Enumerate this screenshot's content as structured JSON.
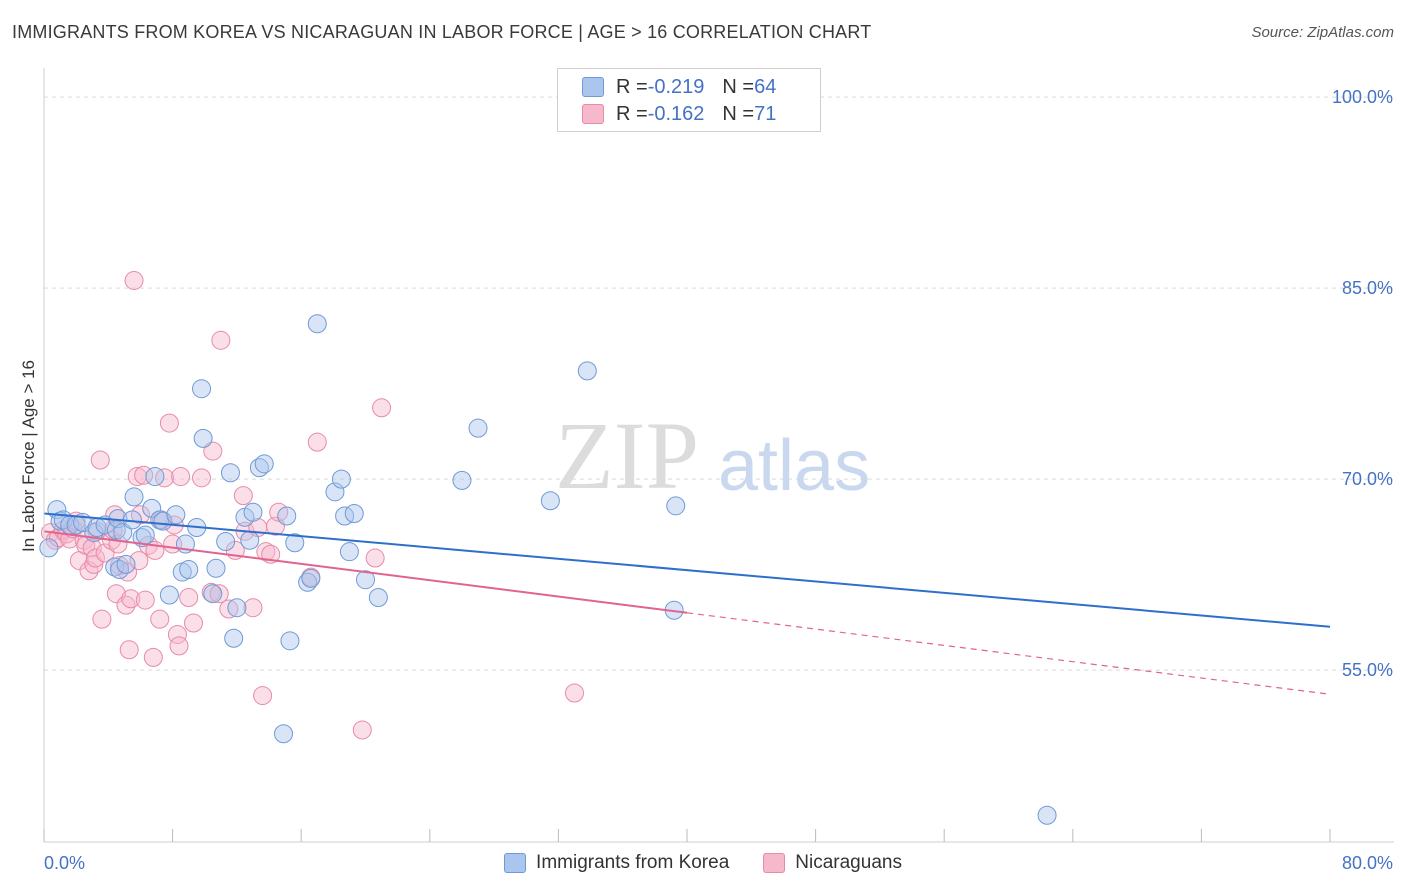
{
  "title": "IMMIGRANTS FROM KOREA VS NICARAGUAN IN LABOR FORCE | AGE > 16 CORRELATION CHART",
  "source": "Source: ZipAtlas.com",
  "watermark": {
    "part1": "ZIP",
    "part2": "atlas"
  },
  "legend": {
    "rows": [
      {
        "r_label": "R = ",
        "r_value": "-0.219",
        "n_label": "N = ",
        "n_value": "64"
      },
      {
        "r_label": "R = ",
        "r_value": "-0.162",
        "n_label": "N = ",
        "n_value": "71"
      }
    ]
  },
  "colors": {
    "korea_fill": "#aac6ee",
    "korea_stroke": "#6f9ad6",
    "korea_line": "#2f6fcc",
    "nica_fill": "#f6b8cb",
    "nica_stroke": "#e98aa8",
    "nica_line": "#e0648e",
    "grid": "#d9d9d9",
    "axis_text": "#4472c4"
  },
  "chart_data": {
    "type": "scatter",
    "title": "IMMIGRANTS FROM KOREA VS NICARAGUAN IN LABOR FORCE | AGE > 16 CORRELATION CHART",
    "xlabel": "",
    "ylabel": "In Labor Force | Age > 16",
    "xlim": [
      0,
      80
    ],
    "ylim": [
      41.5,
      101.5
    ],
    "x_tick_labels": [
      {
        "value": 0,
        "label": "0.0%"
      },
      {
        "value": 80,
        "label": "80.0%"
      }
    ],
    "y_tick_labels": [
      {
        "value": 55,
        "label": "55.0%"
      },
      {
        "value": 70,
        "label": "70.0%"
      },
      {
        "value": 85,
        "label": "85.0%"
      },
      {
        "value": 100,
        "label": "100.0%"
      }
    ],
    "x_minor_ticks": [
      0,
      8,
      16,
      24,
      32,
      40,
      48,
      56,
      64,
      72,
      80
    ],
    "series": [
      {
        "name": "Immigrants from Korea",
        "color_key": "korea",
        "trend": {
          "x0": 0,
          "y0": 67.3,
          "x1": 80,
          "y1": 58.4,
          "solid_until": 80
        },
        "points": [
          [
            0.3,
            64.6
          ],
          [
            0.8,
            67.6
          ],
          [
            1.0,
            66.7
          ],
          [
            1.2,
            66.8
          ],
          [
            1.6,
            66.4
          ],
          [
            2.0,
            66.4
          ],
          [
            2.4,
            66.6
          ],
          [
            3.1,
            65.8
          ],
          [
            3.3,
            66.2
          ],
          [
            3.8,
            66.4
          ],
          [
            4.4,
            63.1
          ],
          [
            4.5,
            66.0
          ],
          [
            4.6,
            66.9
          ],
          [
            4.7,
            62.9
          ],
          [
            4.9,
            65.8
          ],
          [
            5.1,
            63.3
          ],
          [
            5.5,
            66.8
          ],
          [
            5.6,
            68.6
          ],
          [
            6.1,
            65.4
          ],
          [
            6.3,
            65.6
          ],
          [
            6.7,
            67.7
          ],
          [
            6.9,
            70.2
          ],
          [
            7.2,
            66.8
          ],
          [
            7.4,
            66.7
          ],
          [
            7.8,
            60.9
          ],
          [
            8.2,
            67.2
          ],
          [
            8.6,
            62.7
          ],
          [
            8.8,
            64.9
          ],
          [
            9.0,
            62.9
          ],
          [
            9.5,
            66.2
          ],
          [
            9.8,
            77.1
          ],
          [
            9.9,
            73.2
          ],
          [
            10.5,
            61.0
          ],
          [
            10.7,
            63.0
          ],
          [
            11.3,
            65.1
          ],
          [
            11.6,
            70.5
          ],
          [
            11.8,
            57.5
          ],
          [
            12.0,
            59.9
          ],
          [
            12.5,
            67.0
          ],
          [
            12.8,
            65.2
          ],
          [
            13.0,
            67.4
          ],
          [
            13.4,
            70.9
          ],
          [
            13.7,
            71.2
          ],
          [
            14.9,
            50.0
          ],
          [
            15.1,
            67.1
          ],
          [
            15.3,
            57.3
          ],
          [
            15.6,
            65.0
          ],
          [
            16.4,
            61.9
          ],
          [
            16.6,
            62.2
          ],
          [
            17.0,
            82.2
          ],
          [
            18.1,
            69.0
          ],
          [
            18.5,
            70.0
          ],
          [
            18.7,
            67.1
          ],
          [
            19.0,
            64.3
          ],
          [
            19.3,
            67.3
          ],
          [
            20.0,
            62.1
          ],
          [
            20.8,
            60.7
          ],
          [
            26.0,
            69.9
          ],
          [
            27.0,
            74.0
          ],
          [
            31.5,
            68.3
          ],
          [
            33.8,
            78.5
          ],
          [
            39.2,
            59.7
          ],
          [
            39.3,
            67.9
          ],
          [
            62.4,
            43.6
          ]
        ]
      },
      {
        "name": "Nicaraguans",
        "color_key": "nica",
        "trend": {
          "x0": 0,
          "y0": 65.9,
          "x1": 80,
          "y1": 53.1,
          "solid_until": 40
        },
        "points": [
          [
            0.4,
            65.8
          ],
          [
            0.7,
            65.2
          ],
          [
            0.9,
            65.4
          ],
          [
            1.2,
            66.0
          ],
          [
            1.4,
            65.7
          ],
          [
            1.6,
            65.3
          ],
          [
            1.8,
            66.1
          ],
          [
            2.0,
            66.7
          ],
          [
            2.2,
            63.6
          ],
          [
            2.5,
            65.2
          ],
          [
            2.6,
            64.8
          ],
          [
            2.8,
            62.8
          ],
          [
            3.0,
            64.6
          ],
          [
            3.1,
            63.3
          ],
          [
            3.2,
            63.8
          ],
          [
            3.3,
            65.9
          ],
          [
            3.5,
            71.5
          ],
          [
            3.6,
            59.0
          ],
          [
            3.8,
            64.2
          ],
          [
            4.2,
            65.2
          ],
          [
            4.3,
            66.0
          ],
          [
            4.4,
            67.2
          ],
          [
            4.5,
            61.0
          ],
          [
            4.6,
            64.9
          ],
          [
            4.7,
            63.2
          ],
          [
            5.1,
            60.1
          ],
          [
            5.2,
            62.7
          ],
          [
            5.3,
            56.6
          ],
          [
            5.4,
            60.6
          ],
          [
            5.6,
            85.6
          ],
          [
            5.8,
            70.2
          ],
          [
            5.9,
            63.6
          ],
          [
            6.0,
            67.2
          ],
          [
            6.2,
            70.3
          ],
          [
            6.3,
            60.5
          ],
          [
            6.5,
            64.8
          ],
          [
            6.8,
            56.0
          ],
          [
            6.9,
            64.4
          ],
          [
            7.2,
            59.0
          ],
          [
            7.3,
            66.8
          ],
          [
            7.5,
            70.1
          ],
          [
            7.8,
            74.4
          ],
          [
            8.0,
            64.9
          ],
          [
            8.1,
            66.4
          ],
          [
            8.3,
            57.8
          ],
          [
            8.4,
            56.9
          ],
          [
            8.5,
            70.2
          ],
          [
            9.0,
            60.7
          ],
          [
            9.3,
            58.7
          ],
          [
            9.8,
            70.1
          ],
          [
            10.4,
            61.1
          ],
          [
            10.5,
            72.2
          ],
          [
            10.9,
            61.0
          ],
          [
            11.0,
            80.9
          ],
          [
            11.5,
            59.8
          ],
          [
            11.9,
            64.4
          ],
          [
            12.4,
            68.7
          ],
          [
            12.5,
            65.9
          ],
          [
            13.0,
            59.9
          ],
          [
            13.3,
            66.2
          ],
          [
            13.6,
            53.0
          ],
          [
            13.8,
            64.3
          ],
          [
            14.1,
            64.1
          ],
          [
            14.4,
            66.3
          ],
          [
            14.6,
            67.4
          ],
          [
            17.0,
            72.9
          ],
          [
            19.8,
            50.3
          ],
          [
            20.6,
            63.8
          ],
          [
            21.0,
            75.6
          ],
          [
            33.0,
            53.2
          ],
          [
            16.6,
            62.3
          ]
        ]
      }
    ]
  }
}
